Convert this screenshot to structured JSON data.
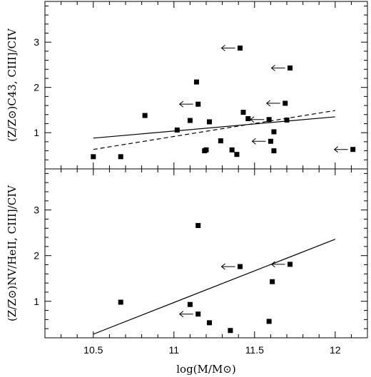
{
  "x_axis": {
    "label": "log(M/M⊙)",
    "ticks": [
      10.5,
      11,
      11.5,
      12
    ],
    "minor_step": 0.1,
    "range": [
      10.2,
      12.2
    ]
  },
  "chart_data": [
    {
      "type": "scatter",
      "ylabel": "(Z/Z⊙)C43, CIII]/CIV",
      "xlim": [
        10.2,
        12.2
      ],
      "ylim": [
        0.2,
        3.9
      ],
      "y_ticks": [
        1,
        2,
        3
      ],
      "y_minor_step": 0.2,
      "grid": false,
      "points": [
        {
          "x": 10.5,
          "y": 0.47
        },
        {
          "x": 10.67,
          "y": 0.47
        },
        {
          "x": 10.82,
          "y": 1.38
        },
        {
          "x": 11.02,
          "y": 1.06
        },
        {
          "x": 11.1,
          "y": 1.27
        },
        {
          "x": 11.14,
          "y": 2.12
        },
        {
          "x": 11.15,
          "y": 1.63
        },
        {
          "x": 11.19,
          "y": 0.6
        },
        {
          "x": 11.2,
          "y": 0.62
        },
        {
          "x": 11.22,
          "y": 1.24
        },
        {
          "x": 11.29,
          "y": 0.82
        },
        {
          "x": 11.36,
          "y": 0.62
        },
        {
          "x": 11.39,
          "y": 0.52
        },
        {
          "x": 11.41,
          "y": 2.87
        },
        {
          "x": 11.43,
          "y": 1.45
        },
        {
          "x": 11.46,
          "y": 1.31
        },
        {
          "x": 11.59,
          "y": 1.29
        },
        {
          "x": 11.6,
          "y": 0.81
        },
        {
          "x": 11.62,
          "y": 1.02
        },
        {
          "x": 11.62,
          "y": 0.6
        },
        {
          "x": 11.69,
          "y": 1.65
        },
        {
          "x": 11.7,
          "y": 1.28
        },
        {
          "x": 11.72,
          "y": 2.43
        },
        {
          "x": 12.11,
          "y": 0.63
        }
      ],
      "upper_limit_arrows": [
        {
          "x": 11.41,
          "y": 2.87
        },
        {
          "x": 11.15,
          "y": 1.63
        },
        {
          "x": 11.72,
          "y": 2.43
        },
        {
          "x": 11.69,
          "y": 1.65
        },
        {
          "x": 11.6,
          "y": 0.81
        },
        {
          "x": 11.59,
          "y": 1.29
        },
        {
          "x": 12.11,
          "y": 0.63
        }
      ],
      "lines": [
        {
          "style": "solid",
          "x": [
            10.5,
            12.0
          ],
          "y": [
            0.88,
            1.35
          ]
        },
        {
          "style": "dashed",
          "x": [
            10.5,
            12.0
          ],
          "y": [
            0.63,
            1.49
          ]
        }
      ]
    },
    {
      "type": "scatter",
      "ylabel": "(Z/Z⊙)NV/HeII, CIII]/CIV",
      "xlim": [
        10.2,
        12.2
      ],
      "ylim": [
        0.2,
        3.9
      ],
      "y_ticks": [
        1,
        2,
        3
      ],
      "y_minor_step": 0.2,
      "grid": false,
      "points": [
        {
          "x": 10.67,
          "y": 0.98
        },
        {
          "x": 11.1,
          "y": 0.93
        },
        {
          "x": 11.15,
          "y": 2.66
        },
        {
          "x": 11.15,
          "y": 0.72
        },
        {
          "x": 11.22,
          "y": 0.53
        },
        {
          "x": 11.35,
          "y": 0.36
        },
        {
          "x": 11.41,
          "y": 1.76
        },
        {
          "x": 11.59,
          "y": 0.56
        },
        {
          "x": 11.61,
          "y": 1.43
        },
        {
          "x": 11.72,
          "y": 1.81
        }
      ],
      "upper_limit_arrows": [
        {
          "x": 11.41,
          "y": 1.76
        },
        {
          "x": 11.72,
          "y": 1.81
        },
        {
          "x": 11.15,
          "y": 0.72
        }
      ],
      "lines": [
        {
          "style": "solid",
          "x": [
            10.5,
            12.0
          ],
          "y": [
            0.28,
            2.36
          ]
        }
      ]
    }
  ]
}
